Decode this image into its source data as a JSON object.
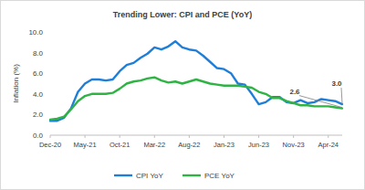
{
  "chart_data": {
    "type": "line",
    "title": "Trending Lower: CPI and PCE (YoY)",
    "y_label": "Inflation (%)",
    "categories": [
      "Dec-20",
      null,
      null,
      null,
      null,
      "May-21",
      null,
      null,
      null,
      null,
      "Oct-21",
      null,
      null,
      null,
      null,
      "Mar-22",
      null,
      null,
      null,
      null,
      "Aug-22",
      null,
      null,
      null,
      null,
      "Jan-23",
      null,
      null,
      null,
      null,
      "Jun-23",
      null,
      null,
      null,
      null,
      "Nov-23",
      null,
      null,
      null,
      null,
      "Apr-24",
      null,
      null
    ],
    "series": [
      {
        "name": "CPI YoY",
        "color": "#1f7fd8",
        "values": [
          1.4,
          1.4,
          1.7,
          2.6,
          4.2,
          5.0,
          5.4,
          5.4,
          5.3,
          5.4,
          6.2,
          6.8,
          7.0,
          7.5,
          7.9,
          8.5,
          8.3,
          8.6,
          9.1,
          8.5,
          8.3,
          8.2,
          7.7,
          7.1,
          6.5,
          6.4,
          6.0,
          5.0,
          4.9,
          4.0,
          3.0,
          3.2,
          3.7,
          3.7,
          3.2,
          3.1,
          3.4,
          3.1,
          3.2,
          3.5,
          3.4,
          3.3,
          3.0
        ]
      },
      {
        "name": "PCE YoY",
        "color": "#2fb344",
        "values": [
          1.5,
          1.6,
          1.8,
          2.5,
          3.3,
          3.8,
          4.0,
          4.0,
          4.0,
          4.1,
          4.5,
          5.0,
          5.2,
          5.3,
          5.5,
          5.6,
          5.3,
          5.1,
          5.2,
          5.0,
          5.2,
          5.4,
          5.2,
          5.0,
          4.9,
          4.8,
          4.8,
          4.8,
          4.7,
          4.6,
          4.2,
          4.0,
          3.6,
          3.6,
          3.3,
          3.1,
          2.9,
          2.9,
          2.8,
          2.8,
          2.8,
          2.7,
          2.6
        ]
      }
    ],
    "ylim": [
      0,
      10
    ],
    "yticks": [
      {
        "value": 0,
        "label": "0.0"
      },
      {
        "value": 2,
        "label": "2.0"
      },
      {
        "value": 4,
        "label": "4.0"
      },
      {
        "value": 6,
        "label": "6.0"
      },
      {
        "value": 8,
        "label": "8.0"
      },
      {
        "value": 10,
        "label": "10.0"
      }
    ],
    "grid": false,
    "legend": "bottom",
    "annotations": [
      {
        "text": "3.0",
        "value": 3.0
      },
      {
        "text": "2.6",
        "value": 2.6
      }
    ]
  }
}
